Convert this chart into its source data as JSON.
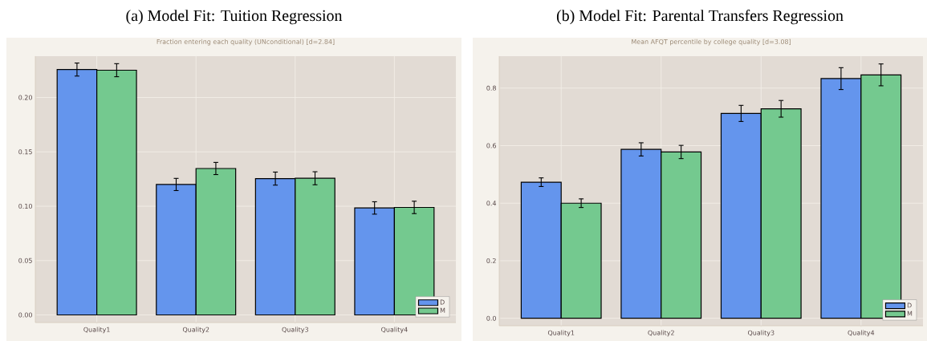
{
  "chart_data": [
    {
      "type": "bar",
      "title": "(a) Model Fit: Tuition Regression",
      "subtitle": "Fraction entering each quality (UNconditional) [d=2.84]",
      "categories": [
        "Quality1",
        "Quality2",
        "Quality3",
        "Quality4"
      ],
      "series": [
        {
          "name": "D",
          "color": "#6495ed",
          "values": [
            0.2257,
            0.12,
            0.1254,
            0.0984
          ],
          "errors": [
            0.006,
            0.0056,
            0.006,
            0.0057
          ]
        },
        {
          "name": "M",
          "color": "#74c98f",
          "values": [
            0.2251,
            0.1347,
            0.1257,
            0.0989
          ],
          "errors": [
            0.006,
            0.0056,
            0.006,
            0.0057
          ]
        }
      ],
      "ylim": [
        -0.007,
        0.238
      ],
      "yticks": [
        {
          "value": 0,
          "label": "0.00"
        },
        {
          "value": 0.05,
          "label": "0.05"
        },
        {
          "value": 0.1,
          "label": "0.10"
        },
        {
          "value": 0.15,
          "label": "0.15"
        },
        {
          "value": 0.2,
          "label": "0.20"
        }
      ],
      "grid": true,
      "legend": "bottom right"
    },
    {
      "type": "bar",
      "title": "(b) Model Fit: Parental Transfers Regression",
      "subtitle": "Mean AFQT percentile by college quality [d=3.08]",
      "categories": [
        "Quality1",
        "Quality2",
        "Quality3",
        "Quality4"
      ],
      "series": [
        {
          "name": "D",
          "color": "#6495ed",
          "values": [
            0.473,
            0.587,
            0.712,
            0.833
          ],
          "errors": [
            0.015,
            0.023,
            0.028,
            0.038
          ]
        },
        {
          "name": "M",
          "color": "#74c98f",
          "values": [
            0.4,
            0.578,
            0.728,
            0.846
          ],
          "errors": [
            0.015,
            0.023,
            0.029,
            0.038
          ]
        }
      ],
      "ylim": [
        -0.026,
        0.911
      ],
      "yticks": [
        {
          "value": 0,
          "label": "0.0"
        },
        {
          "value": 0.2,
          "label": "0.2"
        },
        {
          "value": 0.4,
          "label": "0.4"
        },
        {
          "value": 0.6,
          "label": "0.6"
        },
        {
          "value": 0.8,
          "label": "0.8"
        }
      ],
      "grid": true,
      "legend": "bottom right"
    }
  ]
}
